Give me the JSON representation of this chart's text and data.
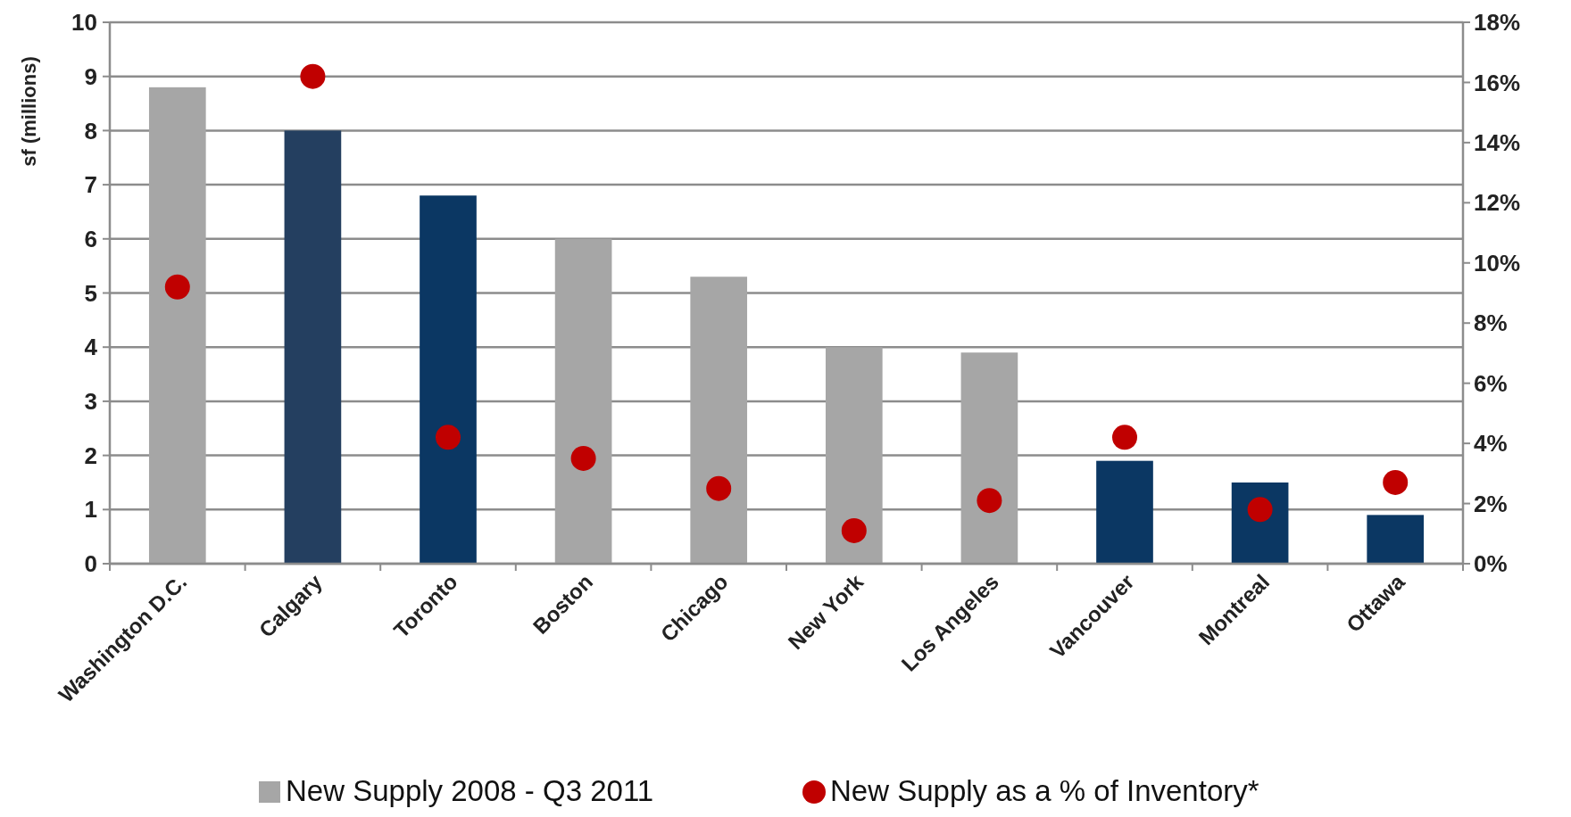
{
  "chart_data": {
    "type": "bar",
    "ylabel": "sf (millions)",
    "categories": [
      "Washington D.C.",
      "Calgary",
      "Toronto",
      "Boston",
      "Chicago",
      "New York",
      "Los Angeles",
      "Vancouver",
      "Montreal",
      "Ottawa"
    ],
    "series": [
      {
        "name": "New Supply 2008 - Q3 2011",
        "color": "#a6a6a6",
        "colors": [
          "#a6a6a6",
          "#243f60",
          "#0b3763",
          "#a6a6a6",
          "#a6a6a6",
          "#a6a6a6",
          "#a6a6a6",
          "#0b3763",
          "#0b3763",
          "#0b3763"
        ],
        "values": [
          8.8,
          8.0,
          6.8,
          6.0,
          5.3,
          4.0,
          3.9,
          1.9,
          1.5,
          0.9
        ]
      },
      {
        "name": "New Supply as a % of Inventory*",
        "type": "scatter",
        "axis": "y2",
        "color": "#c00000",
        "marker": "circle",
        "values": [
          9.2,
          16.2,
          4.2,
          3.5,
          2.5,
          1.1,
          2.1,
          4.2,
          1.8,
          2.7
        ]
      }
    ],
    "ylim": [
      0,
      10
    ],
    "yticks": [
      0,
      1,
      2,
      3,
      4,
      5,
      6,
      7,
      8,
      9,
      10
    ],
    "y2lim": [
      0,
      18
    ],
    "y2ticks": [
      {
        "value": 0,
        "label": "0%"
      },
      {
        "value": 2,
        "label": "2%"
      },
      {
        "value": 4,
        "label": "4%"
      },
      {
        "value": 6,
        "label": "6%"
      },
      {
        "value": 8,
        "label": "8%"
      },
      {
        "value": 10,
        "label": "10%"
      },
      {
        "value": 12,
        "label": "12%"
      },
      {
        "value": 14,
        "label": "14%"
      },
      {
        "value": 16,
        "label": "16%"
      },
      {
        "value": 18,
        "label": "18%"
      }
    ],
    "grid": "y",
    "legend": "bottom"
  }
}
